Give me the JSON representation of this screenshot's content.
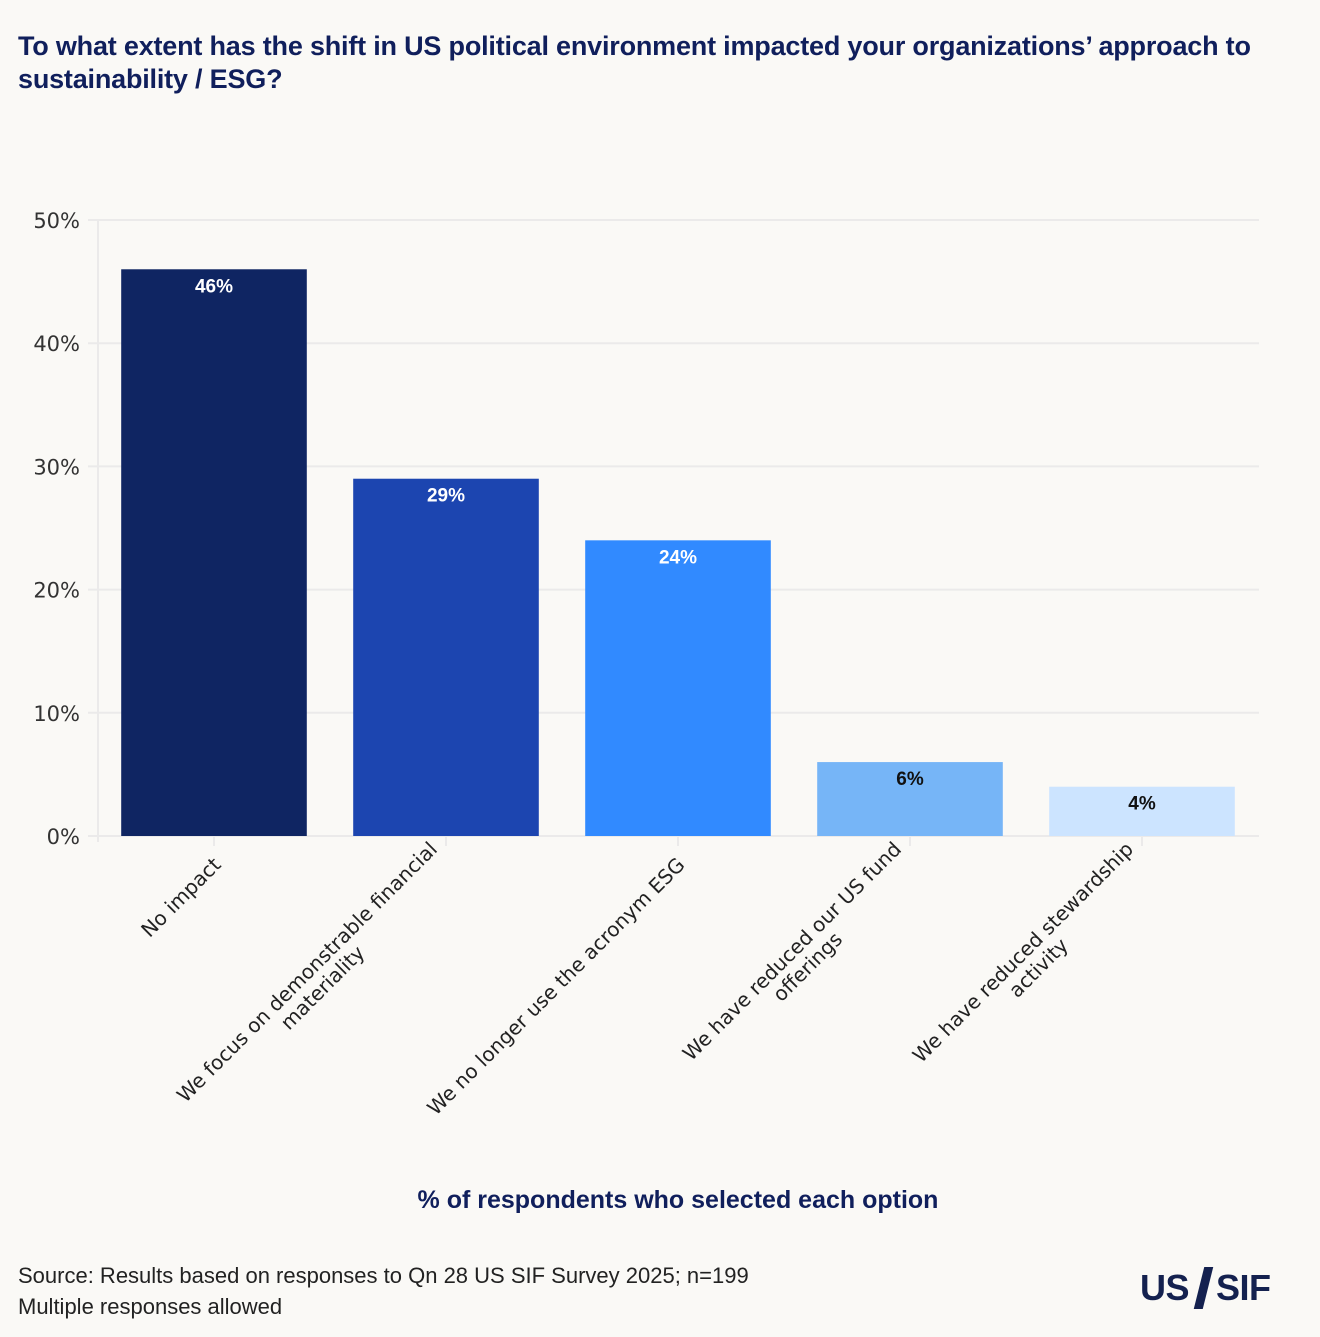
{
  "title": "To what extent has the shift in US political environment impacted your organizations’ approach to sustainability / ESG?",
  "x_axis_label": "% of respondents who selected each option",
  "source_lines": [
    "Source: Results based on responses to Qn 28 US SIF Survey 2025; n=199",
    "Multiple responses allowed"
  ],
  "logo": {
    "left": "US",
    "right": "SIF",
    "icon": "slash-icon"
  },
  "chart_data": {
    "type": "bar",
    "title": "To what extent has the shift in US political environment impacted your organizations’ approach to sustainability / ESG?",
    "xlabel": "% of respondents who selected each option",
    "ylabel": "",
    "categories": [
      [
        "No impact"
      ],
      [
        "We focus on demonstrable financial",
        "materiality"
      ],
      [
        "We no longer use the acronym ESG"
      ],
      [
        "We have reduced our US fund",
        "offerings"
      ],
      [
        "We have reduced stewardship",
        "activity"
      ]
    ],
    "values": [
      46,
      29,
      24,
      6,
      4
    ],
    "data_labels": [
      "46%",
      "29%",
      "24%",
      "6%",
      "4%"
    ],
    "bar_colors": [
      "#0f2562",
      "#1c45b0",
      "#318aff",
      "#76b5f7",
      "#cce4ff"
    ],
    "label_colors": [
      "#ffffff",
      "#ffffff",
      "#ffffff",
      "#111111",
      "#111111"
    ],
    "ylim": [
      0,
      50
    ],
    "yticks": [
      0,
      10,
      20,
      30,
      40,
      50
    ],
    "ytick_labels": [
      "0%",
      "10%",
      "20%",
      "30%",
      "40%",
      "50%"
    ],
    "grid": true,
    "legend": "none"
  }
}
